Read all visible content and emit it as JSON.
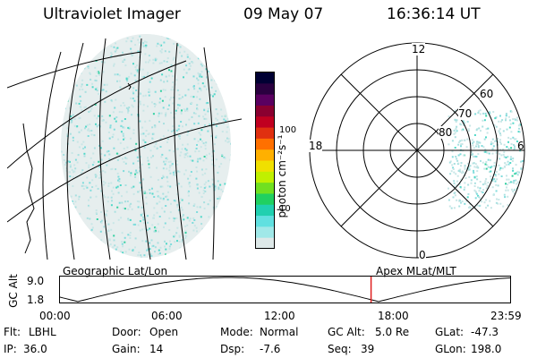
{
  "header": {
    "instrument": "Ultraviolet Imager",
    "date": "09 May 07",
    "time": "16:36:14 UT"
  },
  "colorbar": {
    "unit_label": "photon cm⁻²s⁻¹",
    "tick_100": "100",
    "tick_10": "10",
    "colors": [
      "#000033",
      "#2a0040",
      "#5a0060",
      "#8a0030",
      "#c00020",
      "#e03010",
      "#ff7000",
      "#ffb000",
      "#f0e000",
      "#c0f000",
      "#70e020",
      "#20d060",
      "#20d0b0",
      "#60e0e0",
      "#a0e8e8",
      "#dde8e8"
    ]
  },
  "polar_plot": {
    "labels": {
      "top": "12",
      "left": "18",
      "right": "6",
      "bottom": "0"
    },
    "lat_labels": [
      "60",
      "70",
      "80"
    ]
  },
  "alt_plot": {
    "left_title": "Geographic Lat/Lon",
    "right_title": "Apex MLat/MLT",
    "y_axis_label": "GC Alt",
    "y_ticks": [
      "9.0",
      "1.8"
    ],
    "x_ticks": [
      "00:00",
      "06:00",
      "12:00",
      "18:00",
      "23:59"
    ],
    "marker_time_hours": 16.6,
    "marker_color": "#e02020"
  },
  "info": {
    "row1": [
      {
        "label": "Flt:",
        "value": "LBHL"
      },
      {
        "label": "Door:",
        "value": "Open"
      },
      {
        "label": "Mode:",
        "value": "Normal"
      },
      {
        "label": "GC Alt:",
        "value": "5.0 Re"
      },
      {
        "label": "GLat:",
        "value": "-47.3"
      }
    ],
    "row2": [
      {
        "label": "IP:",
        "value": "36.0"
      },
      {
        "label": "Gain:",
        "value": "14"
      },
      {
        "label": "Dsp:",
        "value": "-7.6"
      },
      {
        "label": "Seq:",
        "value": "39"
      },
      {
        "label": "GLon:",
        "value": "198.0"
      }
    ]
  }
}
